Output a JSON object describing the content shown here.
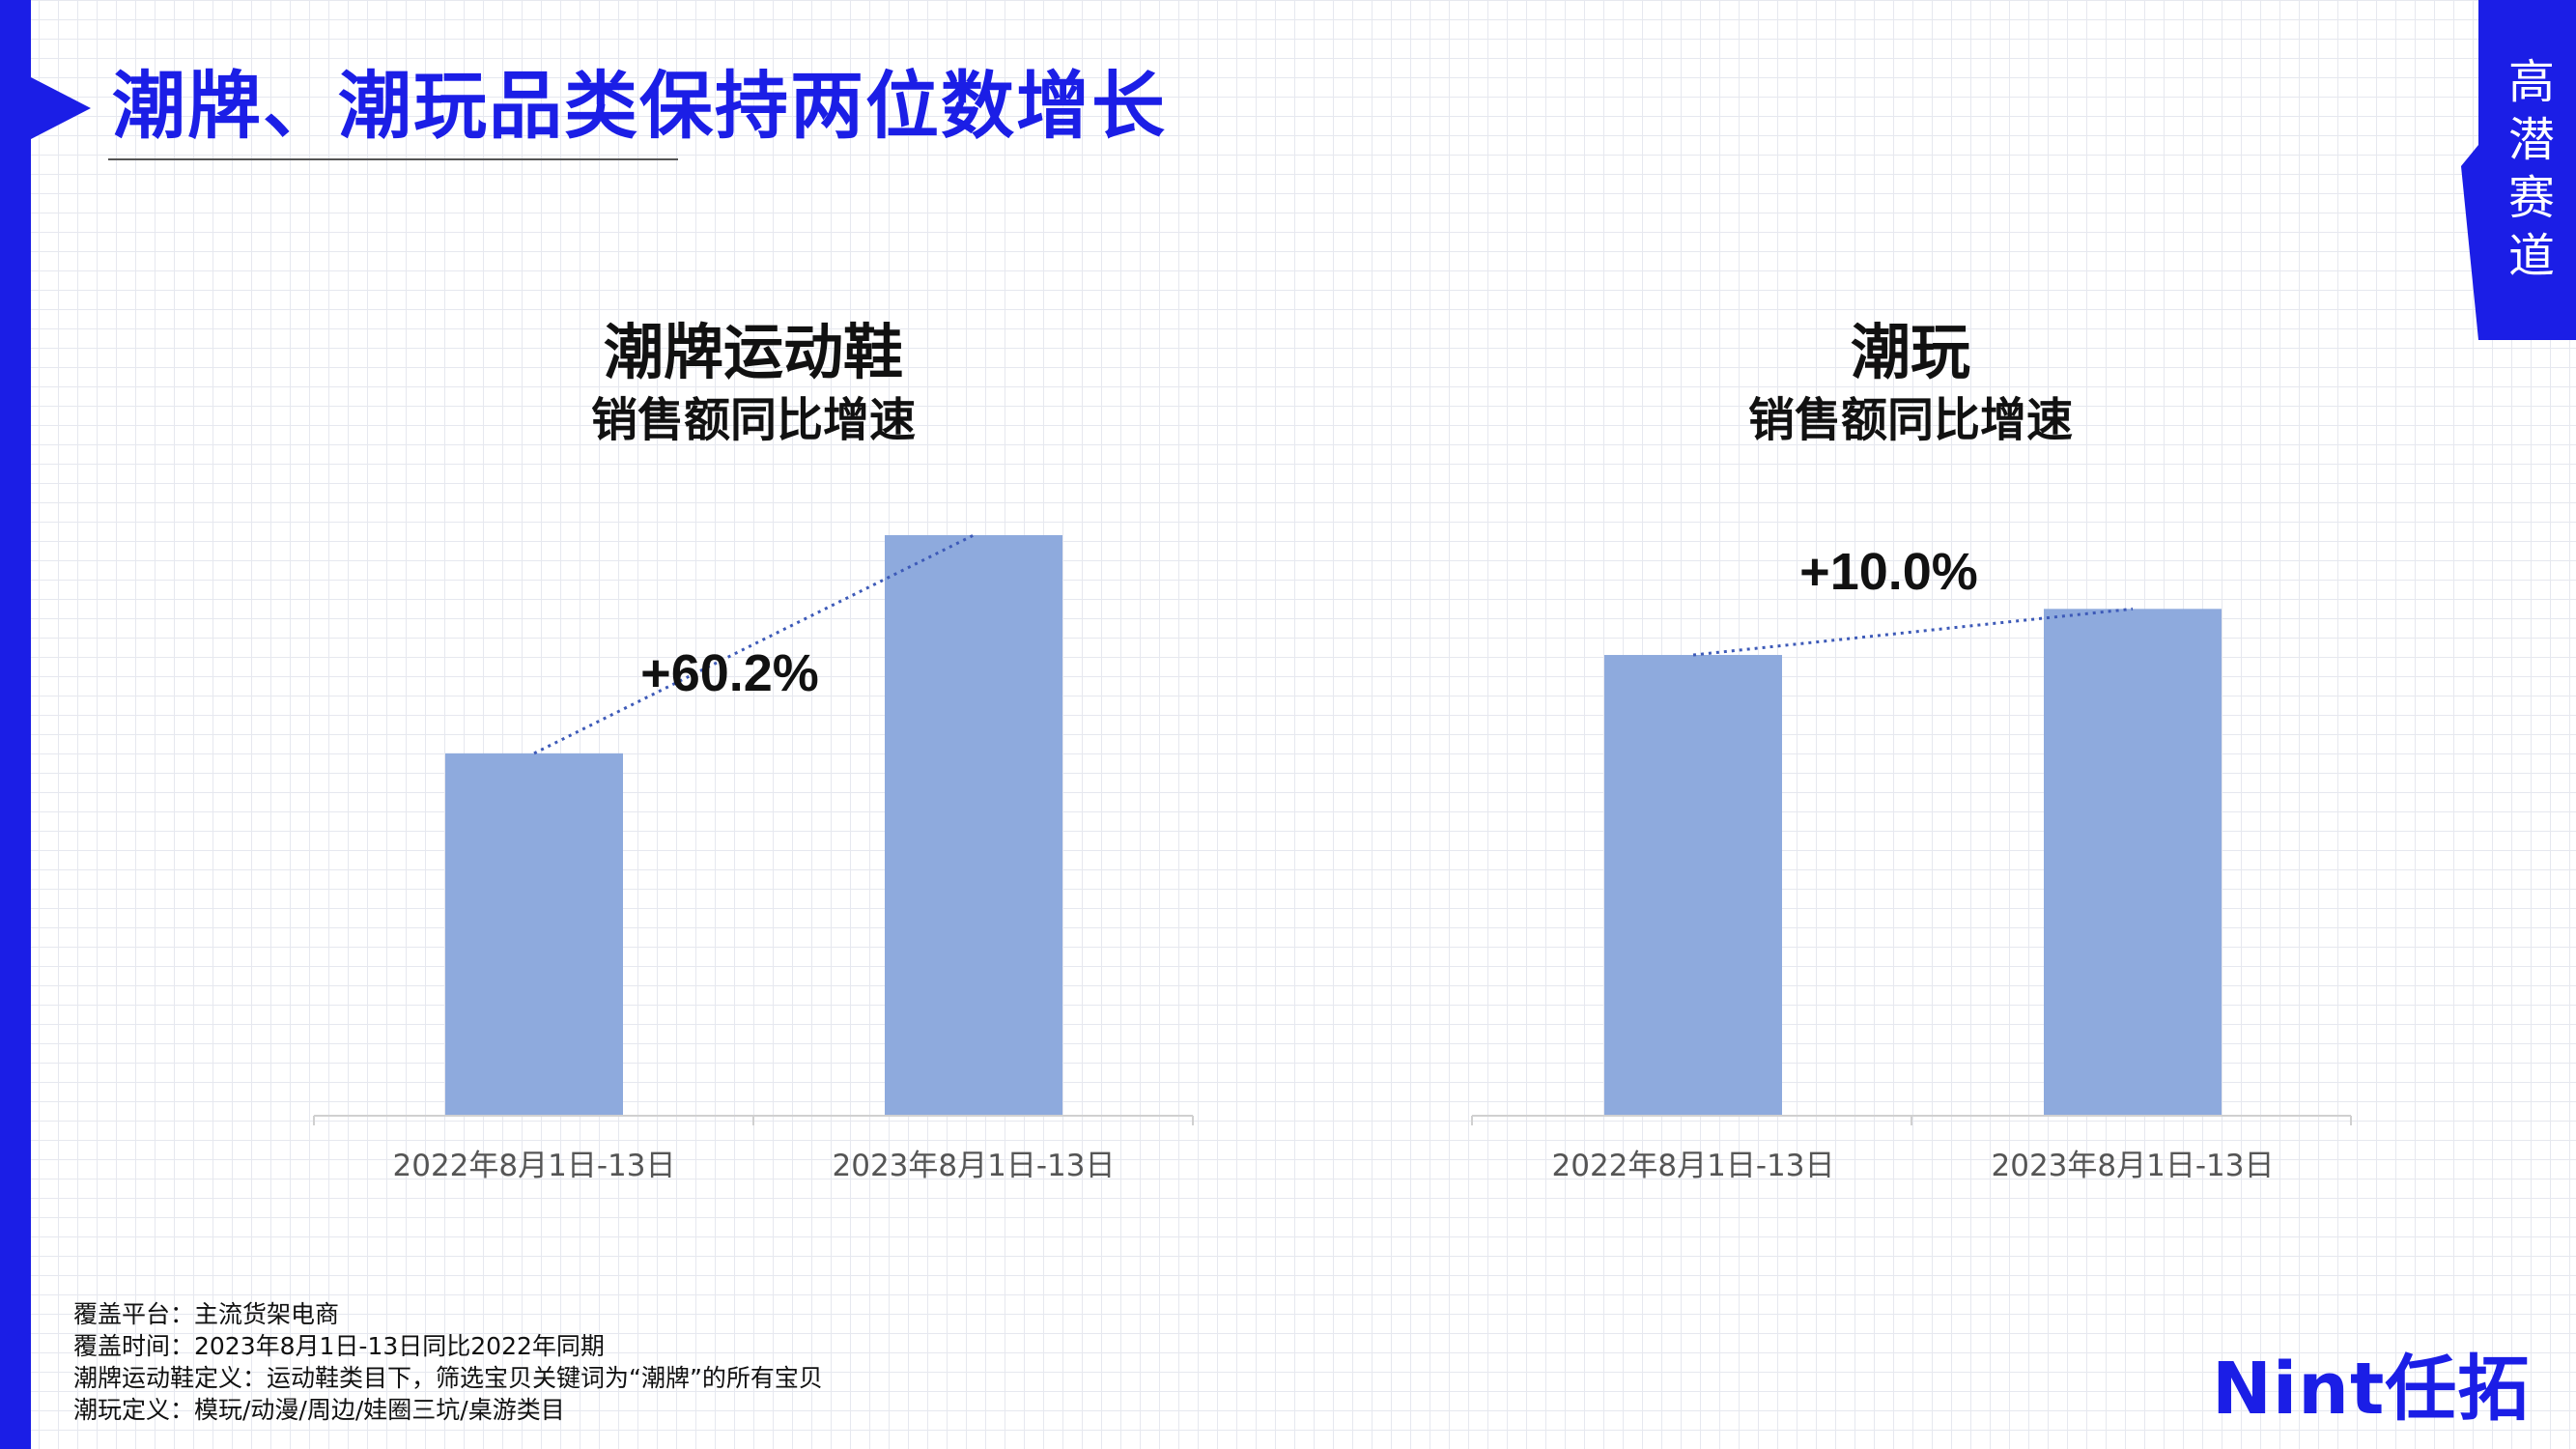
{
  "page": {
    "title": "潮牌、潮玩品类保持两位数增长",
    "side_tag": "高潜赛道",
    "brand": "Nint任拓",
    "accent_color": "#1b1ee6",
    "bar_color": "#8eaadd"
  },
  "footnotes": [
    "覆盖平台：主流货架电商",
    "覆盖时间：2023年8月1日-13日同比2022年同期",
    "潮牌运动鞋定义：运动鞋类目下，筛选宝贝关键词为“潮牌”的所有宝贝",
    "潮玩定义：模玩/动漫/周边/娃圈三坑/桌游类目"
  ],
  "chart_data": [
    {
      "type": "bar",
      "title": "潮牌运动鞋",
      "subtitle": "销售额同比增速",
      "categories": [
        "2022年8月1日-13日",
        "2023年8月1日-13日"
      ],
      "values": [
        100,
        160.2
      ],
      "growth_label": "+60.2%",
      "ylim": [
        0,
        160.2
      ],
      "grid": false,
      "legend": "none"
    },
    {
      "type": "bar",
      "title": "潮玩",
      "subtitle": "销售额同比增速",
      "categories": [
        "2022年8月1日-13日",
        "2023年8月1日-13日"
      ],
      "values": [
        100,
        110
      ],
      "growth_label": "+10.0%",
      "ylim": [
        0,
        126
      ],
      "grid": false,
      "legend": "none"
    }
  ]
}
